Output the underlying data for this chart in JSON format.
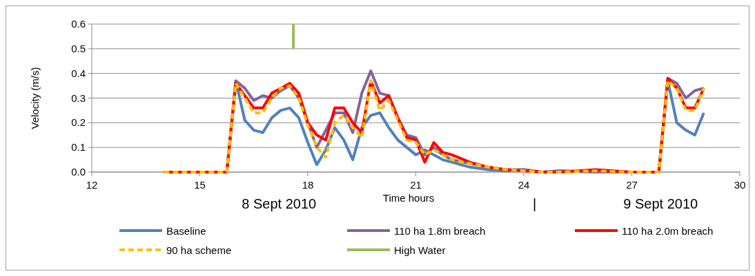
{
  "chart_data": {
    "type": "line",
    "xlabel": "Time hours",
    "ylabel": "Velocity (m/s)",
    "x": [
      14,
      15.75,
      16,
      16.25,
      16.5,
      16.75,
      17,
      17.25,
      17.5,
      17.75,
      18,
      18.25,
      18.5,
      18.75,
      19,
      19.25,
      19.5,
      19.75,
      20,
      20.25,
      20.5,
      20.75,
      21,
      21.25,
      21.5,
      21.75,
      22,
      22.5,
      23,
      23.5,
      24,
      24.5,
      25,
      26,
      27,
      27.75,
      28,
      28.25,
      28.5,
      28.75,
      29
    ],
    "series": [
      {
        "name": "Baseline",
        "color": "#4f81bd",
        "values": [
          0,
          0,
          0.37,
          0.21,
          0.17,
          0.16,
          0.22,
          0.25,
          0.26,
          0.22,
          0.12,
          0.03,
          0.09,
          0.18,
          0.13,
          0.05,
          0.18,
          0.23,
          0.24,
          0.18,
          0.13,
          0.1,
          0.07,
          0.09,
          0.07,
          0.05,
          0.04,
          0.02,
          0.01,
          0.005,
          0.01,
          0,
          0.005,
          0,
          0,
          0,
          0.37,
          0.2,
          0.17,
          0.15,
          0.24
        ]
      },
      {
        "name": "110 ha 1.8m breach",
        "color": "#8064a2",
        "values": [
          0,
          0,
          0.37,
          0.34,
          0.29,
          0.31,
          0.3,
          0.33,
          0.35,
          0.3,
          0.2,
          0.1,
          0.17,
          0.24,
          0.24,
          0.16,
          0.32,
          0.41,
          0.32,
          0.31,
          0.22,
          0.15,
          0.14,
          0.07,
          0.1,
          0.07,
          0.05,
          0.035,
          0.02,
          0.01,
          0.01,
          0,
          0.005,
          0,
          0,
          0,
          0.38,
          0.36,
          0.3,
          0.33,
          0.34
        ]
      },
      {
        "name": "110 ha 2.0m breach",
        "color": "#ff0000",
        "values": [
          0,
          0,
          0.36,
          0.31,
          0.26,
          0.26,
          0.32,
          0.34,
          0.36,
          0.32,
          0.2,
          0.15,
          0.13,
          0.26,
          0.26,
          0.2,
          0.16,
          0.37,
          0.28,
          0.31,
          0.22,
          0.14,
          0.13,
          0.04,
          0.12,
          0.08,
          0.07,
          0.04,
          0.02,
          0.01,
          0.005,
          0,
          0,
          0.01,
          0,
          0,
          0.38,
          0.34,
          0.26,
          0.26,
          0.34
        ]
      },
      {
        "name": "90 ha scheme",
        "color": "#ffc000",
        "line_style": "dashed",
        "values": [
          0,
          0,
          0.36,
          0.3,
          0.24,
          0.24,
          0.3,
          0.34,
          0.35,
          0.3,
          0.19,
          0.1,
          0.06,
          0.2,
          0.23,
          0.18,
          0.14,
          0.37,
          0.25,
          0.29,
          0.21,
          0.13,
          0.12,
          0.07,
          0.09,
          0.07,
          0.05,
          0.035,
          0.02,
          0.01,
          0.005,
          0,
          0,
          0.005,
          0,
          0,
          0.37,
          0.34,
          0.25,
          0.25,
          0.34
        ]
      },
      {
        "name": "High Water",
        "color": "#9bbb59",
        "x": [
          17.6,
          17.6
        ],
        "values": [
          0.5,
          0.6
        ]
      }
    ],
    "xlim": [
      12,
      30
    ],
    "xticks": [
      12,
      15,
      18,
      21,
      24,
      27,
      30
    ],
    "ylim": [
      0,
      0.6
    ],
    "yticks": [
      {
        "value": 0,
        "label": "0.0"
      },
      {
        "value": 0.1,
        "label": "0.1"
      },
      {
        "value": 0.2,
        "label": "0.2"
      },
      {
        "value": 0.3,
        "label": "0.3"
      },
      {
        "value": 0.4,
        "label": "0.4"
      },
      {
        "value": 0.5,
        "label": "0.5"
      },
      {
        "value": 0.6,
        "label": "0.6"
      }
    ],
    "grid": "y",
    "legend": "bottom",
    "marker": "none",
    "line_style": "solid",
    "annotations": [
      "8 Sept 2010",
      "|",
      "9 Sept 2010"
    ]
  }
}
